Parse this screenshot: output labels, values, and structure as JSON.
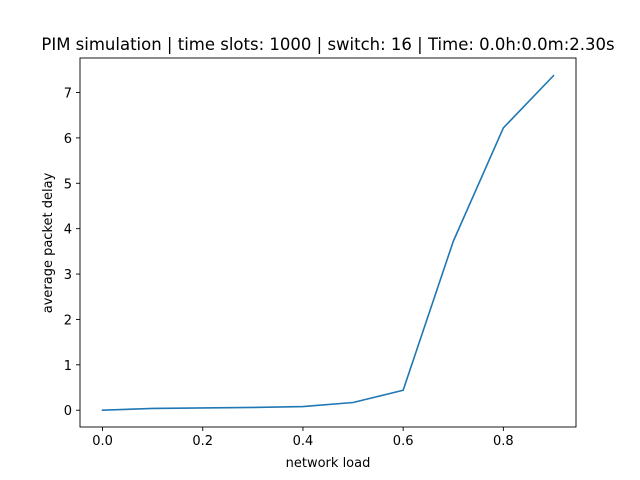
{
  "chart_data": {
    "type": "line",
    "title": "PIM simulation | time slots: 1000 | switch: 16 | Time: 0.0h:0.0m:2.30s",
    "xlabel": "network load",
    "ylabel": "average packet delay",
    "xlim": [
      -0.045,
      0.945
    ],
    "ylim": [
      -0.37,
      7.76
    ],
    "xticks": [
      0.0,
      0.2,
      0.4,
      0.6,
      0.8
    ],
    "xtick_labels": [
      "0.0",
      "0.2",
      "0.4",
      "0.6",
      "0.8"
    ],
    "yticks": [
      0,
      1,
      2,
      3,
      4,
      5,
      6,
      7
    ],
    "ytick_labels": [
      "0",
      "1",
      "2",
      "3",
      "4",
      "5",
      "6",
      "7"
    ],
    "grid": false,
    "series": [
      {
        "color": "#1f77b4",
        "x": [
          0.0,
          0.1,
          0.2,
          0.3,
          0.4,
          0.5,
          0.6,
          0.7,
          0.8,
          0.9
        ],
        "y": [
          0.0,
          0.04,
          0.05,
          0.06,
          0.08,
          0.17,
          0.44,
          3.72,
          6.22,
          7.37
        ]
      }
    ]
  }
}
